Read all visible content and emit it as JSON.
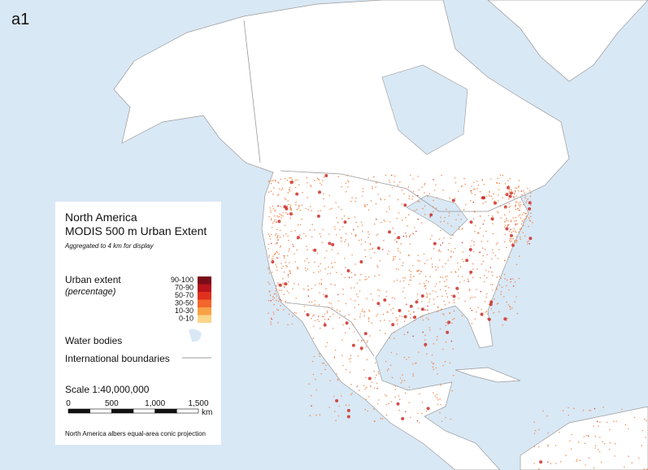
{
  "panel_label": "a1",
  "legend": {
    "title": "North America",
    "subtitle": "MODIS 500 m Urban Extent",
    "note": "Aggregated to 4 km for display",
    "urban_title": "Urban extent",
    "urban_unit": "(percentage)",
    "classes": [
      "90-100",
      "70-90",
      "50-70",
      "30-50",
      "10-30",
      "0-10"
    ],
    "water": "Water bodies",
    "boundaries": "International boundaries",
    "scale": "Scale 1:40,000,000",
    "scale_ticks": [
      "0",
      "500",
      "1,000",
      "1,500"
    ],
    "scale_unit": "km",
    "projection": "North America albers equal-area conic projection"
  }
}
